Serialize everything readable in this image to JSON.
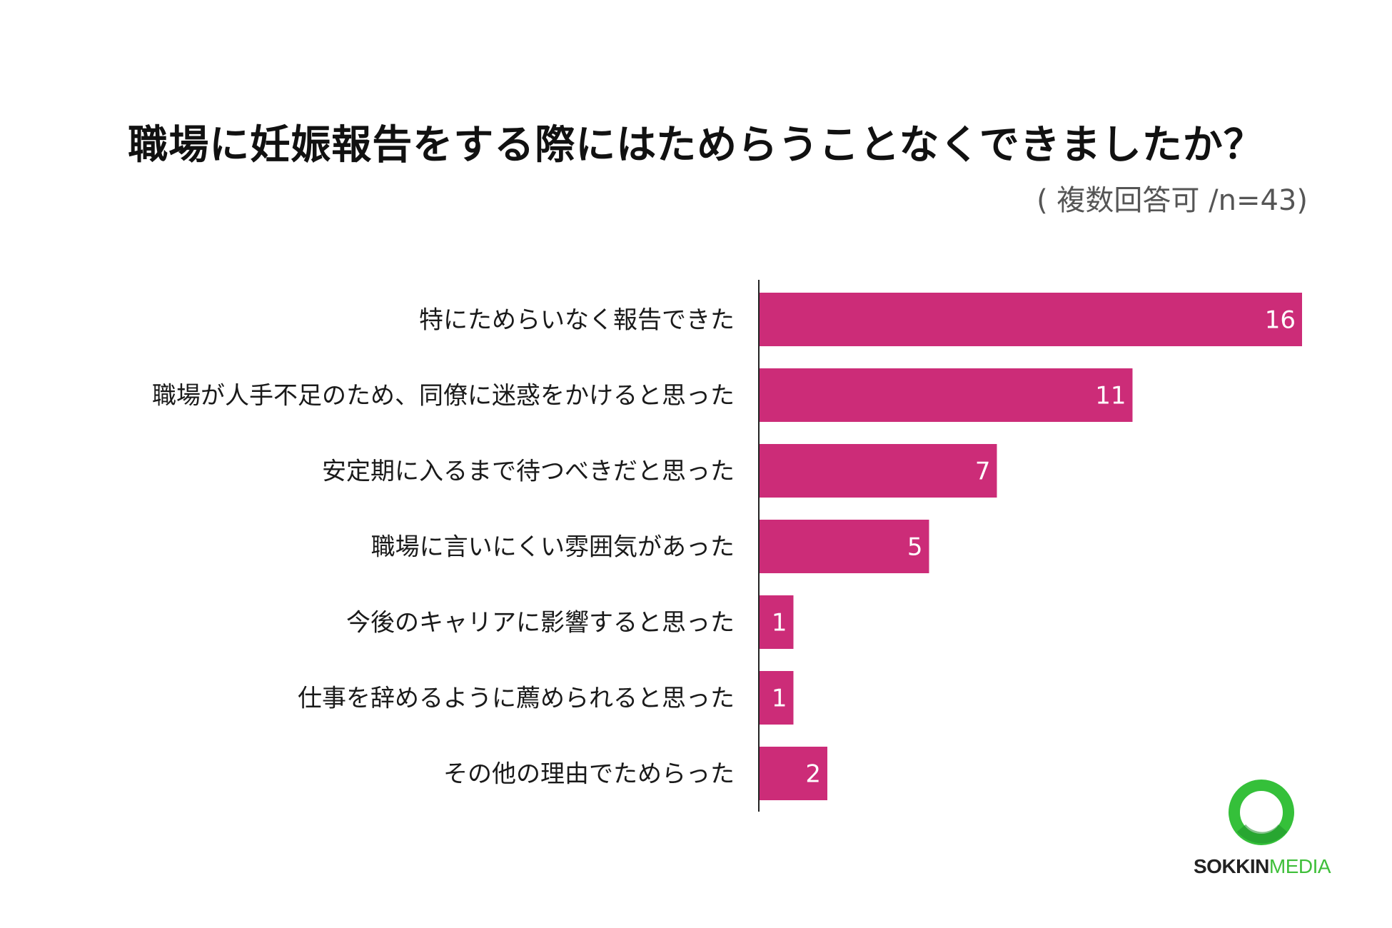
{
  "title": "職場に妊娠報告をする際にはためらうことなくできましたか？",
  "subtitle": "( 複数回答可 /n=43)",
  "logo": {
    "part1": "SOKKIN",
    "part2": "MEDIA",
    "ring_color": "#35c03a"
  },
  "colors": {
    "bar": "#cc2c78",
    "axis": "#222222"
  },
  "chart_data": {
    "type": "bar",
    "orientation": "horizontal",
    "categories": [
      "特にためらいなく報告できた",
      "職場が人手不足のため、同僚に迷惑をかけると思った",
      "安定期に入るまで待つべきだと思った",
      "職場に言いにくい雰囲気があった",
      "今後のキャリアに影響すると思った",
      "仕事を辞めるように薦められると思った",
      "その他の理由でためらった"
    ],
    "values": [
      16,
      11,
      7,
      5,
      1,
      1,
      2
    ],
    "xlim": [
      0,
      16
    ],
    "grid": false,
    "legend": "none",
    "data_labels": true
  }
}
